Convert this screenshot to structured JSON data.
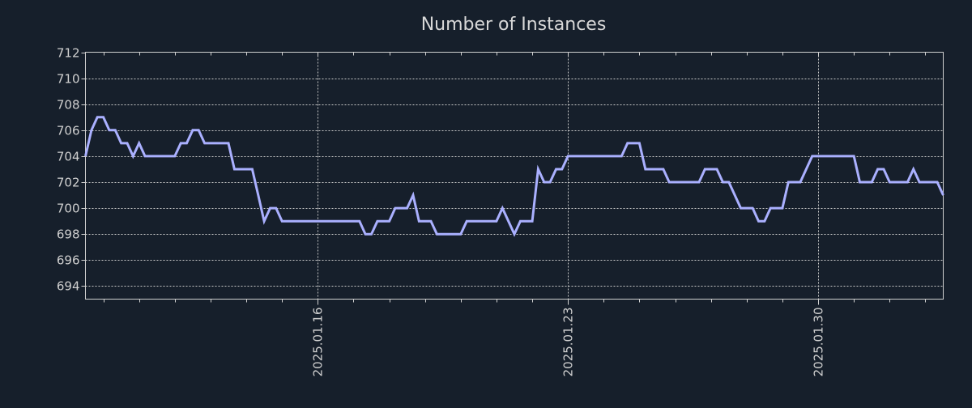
{
  "chart_data": {
    "type": "line",
    "title": "Number of Instances",
    "xlabel": "",
    "ylabel": "",
    "x_unit": "hours since 2025.01.16 00:00",
    "xlim": [
      -156,
      420
    ],
    "ylim": [
      693,
      712
    ],
    "grid": true,
    "colors": {
      "background": "#161f2b",
      "line": "#aab0ff",
      "grid": "#c8c8c8",
      "text": "#d0d0d0",
      "title": "#d8d8d8"
    },
    "y_ticks": [
      694,
      696,
      698,
      700,
      702,
      704,
      706,
      708,
      710,
      712
    ],
    "y_tick_labels": [
      "694",
      "696",
      "698",
      "700",
      "702",
      "704",
      "706",
      "708",
      "710",
      "712"
    ],
    "x_ticks": [
      0,
      168,
      336
    ],
    "x_tick_labels": [
      "2025.01.16",
      "2025.01.23",
      "2025.01.30"
    ],
    "x_minor_step": 24,
    "series": [
      {
        "name": "Number of Instances",
        "x": [
          -156,
          -152,
          -148,
          -144,
          -140,
          -136,
          -132,
          -128,
          -124,
          -120,
          -116,
          -96,
          -92,
          -88,
          -84,
          -80,
          -76,
          -60,
          -56,
          -44,
          -40,
          -36,
          -32,
          -28,
          -24,
          28,
          32,
          36,
          40,
          48,
          52,
          60,
          64,
          68,
          76,
          80,
          96,
          100,
          120,
          124,
          132,
          136,
          144,
          148,
          152,
          156,
          160,
          164,
          168,
          204,
          208,
          216,
          220,
          232,
          236,
          256,
          260,
          268,
          272,
          276,
          284,
          292,
          296,
          300,
          304,
          312,
          316,
          324,
          332,
          360,
          364,
          372,
          376,
          380,
          384,
          396,
          400,
          404,
          416,
          420
        ],
        "y": [
          704,
          706,
          707,
          707,
          706,
          706,
          705,
          705,
          704,
          705,
          704,
          704,
          705,
          705,
          706,
          706,
          705,
          705,
          703,
          703,
          701,
          699,
          700,
          700,
          699,
          699,
          698,
          698,
          699,
          699,
          700,
          700,
          701,
          699,
          699,
          698,
          698,
          699,
          699,
          700,
          698,
          699,
          699,
          703,
          702,
          702,
          703,
          703,
          704,
          704,
          705,
          705,
          703,
          703,
          702,
          702,
          703,
          703,
          702,
          702,
          700,
          700,
          699,
          699,
          700,
          700,
          702,
          702,
          704,
          704,
          702,
          702,
          703,
          703,
          702,
          702,
          703,
          702,
          702,
          701
        ]
      }
    ]
  }
}
